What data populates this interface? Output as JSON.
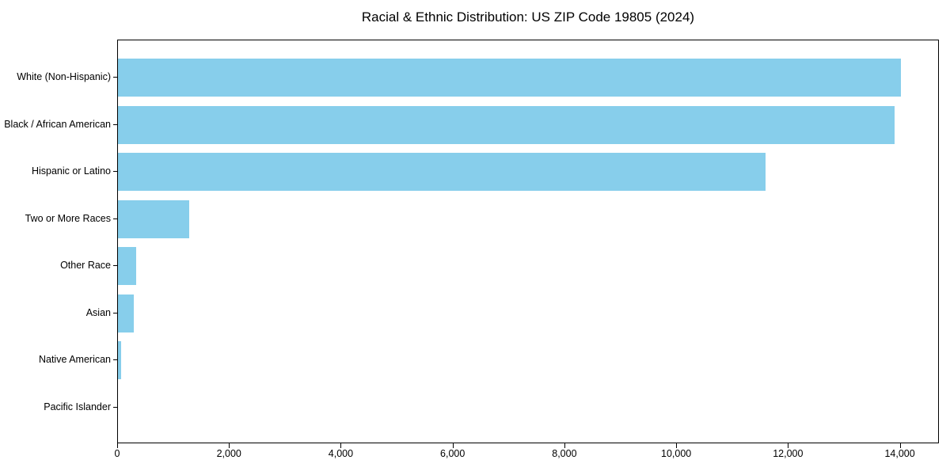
{
  "chart_data": {
    "type": "bar",
    "orientation": "horizontal",
    "title": "Racial & Ethnic Distribution: US ZIP Code 19805 (2024)",
    "categories": [
      "White (Non-Hispanic)",
      "Black / African American",
      "Hispanic or Latino",
      "Two or More Races",
      "Other Race",
      "Asian",
      "Native American",
      "Pacific Islander"
    ],
    "values": [
      14000,
      13890,
      11590,
      1280,
      330,
      280,
      50,
      0
    ],
    "xlabel": "",
    "ylabel": "",
    "xlim": [
      0,
      14700
    ],
    "x_ticks": [
      0,
      2000,
      4000,
      6000,
      8000,
      10000,
      12000,
      14000
    ],
    "x_tick_labels": [
      "0",
      "2,000",
      "4,000",
      "6,000",
      "8,000",
      "10,000",
      "12,000",
      "14,000"
    ],
    "bar_color": "#87CEEB",
    "grid": "off",
    "legend": "none"
  }
}
